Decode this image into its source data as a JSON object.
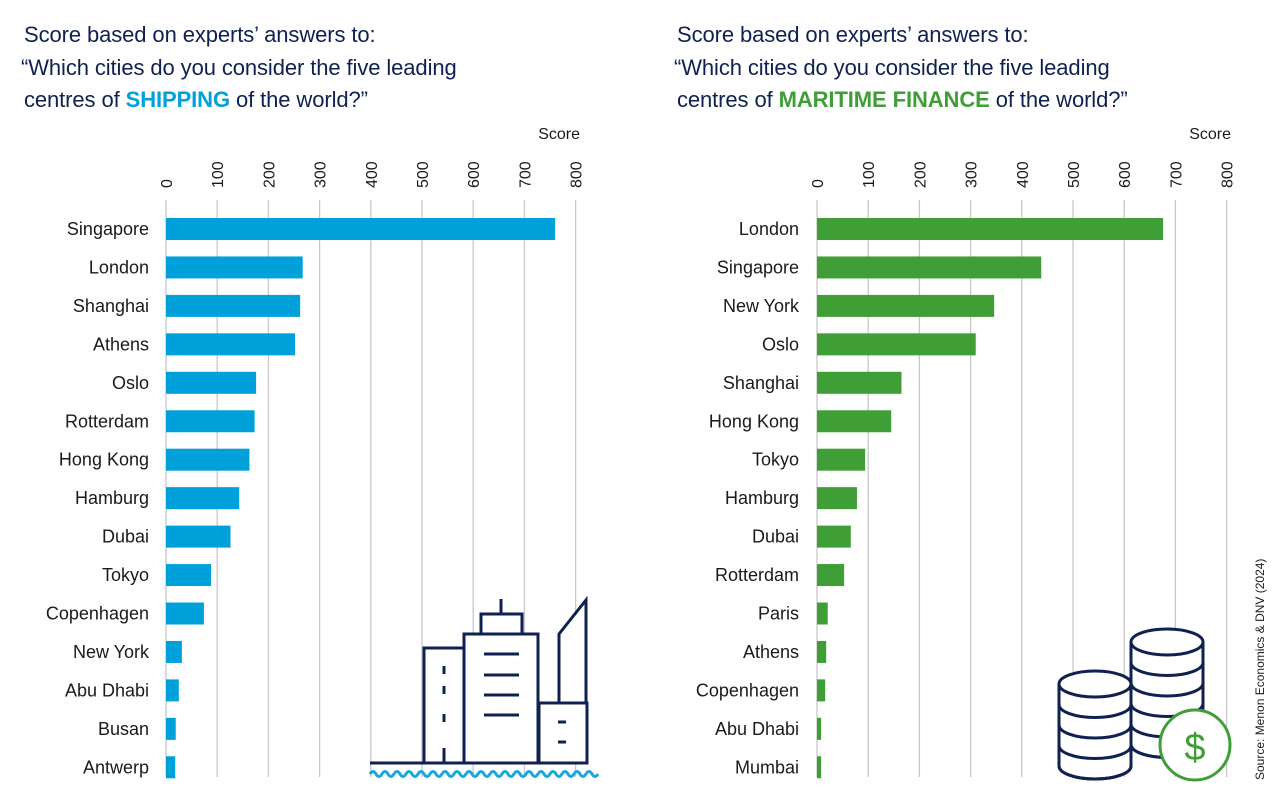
{
  "colors": {
    "title": "#0f2150",
    "shipping": "#00a0da",
    "finance": "#409e37",
    "grid": "#c8c8c8",
    "icon": "#0f2150",
    "wave": "#1aa7e0"
  },
  "source": "Source: Menon Economics & DNV (2024)",
  "chart_data": [
    {
      "type": "bar",
      "orientation": "horizontal",
      "title_lines": [
        "Score based on experts’ answers to:",
        "“Which cities do you consider the five leading"
      ],
      "title_last_prefix": "centres of ",
      "title_highlight": "SHIPPING",
      "title_last_suffix": " of the world?”",
      "xlabel": "Score",
      "ylabel": "",
      "xlim": [
        0,
        800
      ],
      "ticks": [
        "0",
        "100",
        "200",
        "300",
        "400",
        "500",
        "600",
        "700",
        "800"
      ],
      "tick_values": [
        0,
        100,
        200,
        300,
        400,
        500,
        600,
        700,
        800
      ],
      "grid": true,
      "legend": "none",
      "categories": [
        "Singapore",
        "London",
        "Shanghai",
        "Athens",
        "Oslo",
        "Rotterdam",
        "Hong Kong",
        "Hamburg",
        "Dubai",
        "Tokyo",
        "Copenhagen",
        "New York",
        "Abu Dhabi",
        "Busan",
        "Antwerp"
      ],
      "values": [
        760,
        267,
        262,
        252,
        176,
        173,
        163,
        143,
        126,
        88,
        74,
        31,
        25,
        19,
        18
      ],
      "icon": "city-skyline-icon"
    },
    {
      "type": "bar",
      "orientation": "horizontal",
      "title_lines": [
        "Score based on experts’ answers to:",
        "“Which cities do you consider the five leading"
      ],
      "title_last_prefix": "centres of ",
      "title_highlight": "MARITIME FINANCE",
      "title_last_suffix": " of the world?”",
      "xlabel": "Score",
      "ylabel": "",
      "xlim": [
        0,
        800
      ],
      "ticks": [
        "0",
        "100",
        "200",
        "300",
        "400",
        "500",
        "600",
        "700",
        "800"
      ],
      "tick_values": [
        0,
        100,
        200,
        300,
        400,
        500,
        600,
        700,
        800
      ],
      "grid": true,
      "legend": "none",
      "categories": [
        "London",
        "Singapore",
        "New York",
        "Oslo",
        "Shanghai",
        "Hong Kong",
        "Tokyo",
        "Hamburg",
        "Dubai",
        "Rotterdam",
        "Paris",
        "Athens",
        "Copenhagen",
        "Abu Dhabi",
        "Mumbai"
      ],
      "values": [
        676,
        438,
        346,
        310,
        165,
        145,
        94,
        78,
        66,
        53,
        21,
        18,
        16,
        8,
        8
      ],
      "icon": "coins-dollar-icon"
    }
  ]
}
